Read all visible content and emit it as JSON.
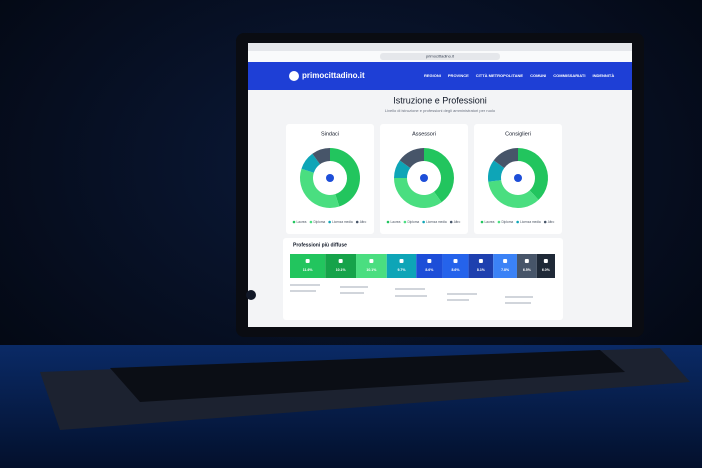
{
  "browser": {
    "url": "primocittadino.it"
  },
  "site": {
    "logo": "primocittadino.it",
    "nav": [
      "REGIONI",
      "PROVINCE",
      "CITTÀ METROPOLITANE",
      "COMUNI",
      "COMMISSARIATI",
      "INDENNITÀ"
    ]
  },
  "page": {
    "title": "Istruzione e Professioni",
    "subtitle": "Livello di istruzione e professioni degli amministratori per ruolo"
  },
  "education": {
    "legend": [
      {
        "name": "Laurea",
        "color": "#22c55e"
      },
      {
        "name": "Diploma",
        "color": "#4ade80"
      },
      {
        "name": "Licenza media",
        "color": "#0ea5b7"
      },
      {
        "name": "Altro",
        "color": "#475569"
      }
    ],
    "cards": [
      {
        "title": "Sindaci",
        "values": [
          45,
          35,
          10,
          10
        ]
      },
      {
        "title": "Assessori",
        "values": [
          40,
          35,
          10,
          15
        ]
      },
      {
        "title": "Consiglieri",
        "values": [
          38,
          35,
          12,
          15
        ]
      }
    ]
  },
  "professions": {
    "title": "Professioni più diffuse",
    "values": [
      11.6,
      10.1,
      10.1,
      9.7,
      8.6,
      8.6,
      8.1,
      7.8,
      6.5,
      6.0
    ],
    "value_labels": [
      "11.6%",
      "10.1%",
      "10.1%",
      "9.7%",
      "8.6%",
      "8.6%",
      "8.1%",
      "7.8%",
      "6.5%",
      "6.0%"
    ],
    "colors": [
      "#22c55e",
      "#16a34a",
      "#4ade80",
      "#0ea5b7",
      "#1d4ed8",
      "#2563eb",
      "#1e40af",
      "#3b82f6",
      "#475569",
      "#1f2937"
    ]
  }
}
